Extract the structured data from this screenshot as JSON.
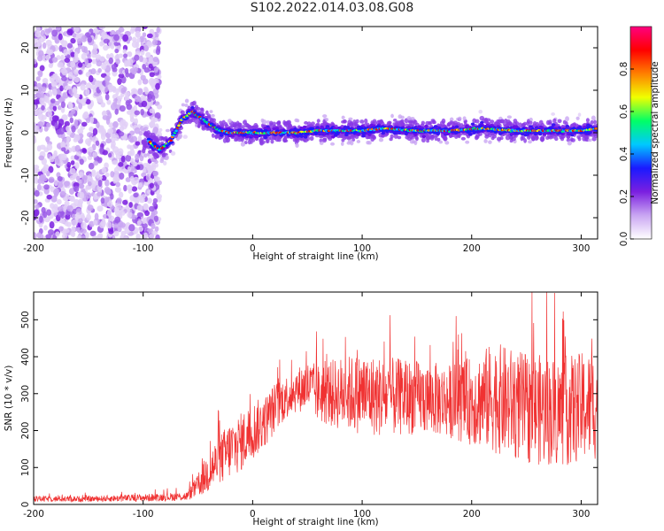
{
  "title": "S102.2022.014.03.08.G08",
  "chart_data": [
    {
      "type": "heatmap",
      "title": "",
      "xlabel": "Height of straight line (km)",
      "ylabel": "Frequency (Hz)",
      "xlim": [
        -200,
        315
      ],
      "ylim": [
        -25,
        25
      ],
      "xticks": [
        -200,
        -100,
        0,
        100,
        200,
        300
      ],
      "yticks": [
        -20,
        -10,
        0,
        10,
        20
      ],
      "colorbar": {
        "label": "Normalized spectral amplitude",
        "range": [
          0,
          1
        ],
        "ticks": [
          0.0,
          0.2,
          0.4,
          0.6,
          0.8
        ],
        "colormap": [
          "#ffffff",
          "#c9a6f2",
          "#7b1fe0",
          "#1a1aff",
          "#00c8ff",
          "#00ff66",
          "#f0ff00",
          "#ff8000",
          "#ff0000",
          "#ff0080"
        ]
      },
      "ridge_frequency": {
        "x": [
          -95,
          -85,
          -75,
          -65,
          -55,
          -50,
          -40,
          -30,
          -20,
          -10,
          0,
          20,
          40,
          60,
          80,
          100,
          120,
          150,
          180,
          210,
          240,
          270,
          300,
          315
        ],
        "y": [
          -2,
          -4,
          -2,
          3,
          5,
          4,
          2,
          0.5,
          0,
          0,
          0,
          0,
          0,
          0.5,
          0.5,
          0.5,
          1,
          0.5,
          0.5,
          1,
          0.5,
          0.5,
          0.5,
          1
        ]
      },
      "noise_region_xlim": [
        -200,
        -85
      ]
    },
    {
      "type": "line",
      "title": "",
      "xlabel": "Height of straight line (km)",
      "ylabel": "SNR (10 * v/v)",
      "xlim": [
        -200,
        315
      ],
      "ylim": [
        0,
        575
      ],
      "xticks": [
        -200,
        -100,
        0,
        100,
        200,
        300
      ],
      "yticks": [
        0,
        100,
        200,
        300,
        400,
        500
      ],
      "color": "#f03232",
      "series": [
        {
          "x": [
            -200,
            -150,
            -100,
            -60,
            -50,
            -40,
            -30,
            -20,
            -10,
            0,
            10,
            20,
            30,
            40,
            50,
            60,
            80,
            100,
            120,
            150,
            180,
            200,
            220,
            250,
            280,
            315
          ],
          "y": [
            15,
            15,
            18,
            22,
            50,
            90,
            120,
            150,
            170,
            200,
            220,
            260,
            290,
            310,
            320,
            300,
            300,
            300,
            290,
            290,
            280,
            280,
            290,
            260,
            250,
            270
          ],
          "spread": [
            8,
            8,
            10,
            12,
            30,
            60,
            70,
            80,
            80,
            80,
            70,
            70,
            60,
            60,
            70,
            80,
            100,
            110,
            110,
            100,
            100,
            120,
            150,
            150,
            150,
            150
          ]
        }
      ]
    }
  ]
}
